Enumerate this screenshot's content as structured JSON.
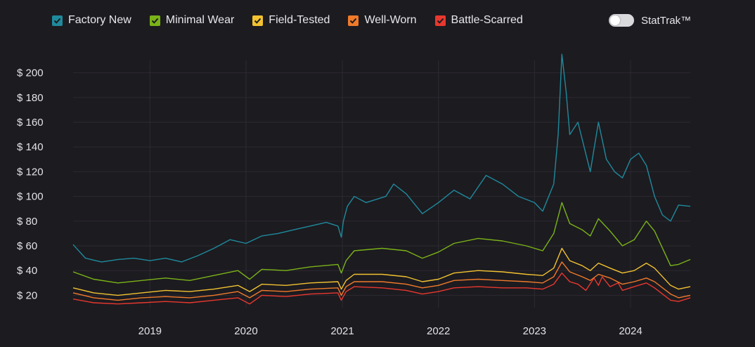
{
  "legend": {
    "items": [
      {
        "label": "Factory New",
        "color": "#1f8a9c"
      },
      {
        "label": "Minimal Wear",
        "color": "#7ab317"
      },
      {
        "label": "Field-Tested",
        "color": "#f2c230"
      },
      {
        "label": "Well-Worn",
        "color": "#f07a2a"
      },
      {
        "label": "Battle-Scarred",
        "color": "#e8382e"
      }
    ]
  },
  "toggle": {
    "label": "StatTrak™",
    "state": "off"
  },
  "chart_data": {
    "type": "line",
    "title": "",
    "xlabel": "",
    "ylabel": "",
    "x_range": [
      "2018-03-15",
      "2024-08-15"
    ],
    "ylim": [
      10,
      210
    ],
    "y_ticks": [
      20,
      40,
      60,
      80,
      100,
      120,
      140,
      160,
      180,
      200
    ],
    "y_tick_labels": [
      "$ 20",
      "$ 40",
      "$ 60",
      "$ 80",
      "$ 100",
      "$ 120",
      "$ 140",
      "$ 160",
      "$ 180",
      "$ 200"
    ],
    "x_ticks": [
      "2019-01-01",
      "2020-01-01",
      "2021-01-01",
      "2022-01-01",
      "2023-01-01",
      "2024-01-01"
    ],
    "x_tick_labels": [
      "2019",
      "2020",
      "2021",
      "2022",
      "2023",
      "2024"
    ],
    "grid": true,
    "legend_position": "top-left",
    "series": [
      {
        "name": "Factory New",
        "color": "#1f8a9c",
        "points": [
          [
            "2018-03-15",
            61
          ],
          [
            "2018-05-01",
            50
          ],
          [
            "2018-07-01",
            47
          ],
          [
            "2018-09-01",
            49
          ],
          [
            "2018-11-01",
            50
          ],
          [
            "2019-01-01",
            48
          ],
          [
            "2019-03-01",
            50
          ],
          [
            "2019-05-01",
            47
          ],
          [
            "2019-07-01",
            52
          ],
          [
            "2019-09-01",
            58
          ],
          [
            "2019-11-01",
            65
          ],
          [
            "2020-01-01",
            62
          ],
          [
            "2020-03-01",
            68
          ],
          [
            "2020-05-01",
            70
          ],
          [
            "2020-07-01",
            73
          ],
          [
            "2020-09-01",
            76
          ],
          [
            "2020-11-01",
            79
          ],
          [
            "2020-12-15",
            76
          ],
          [
            "2020-12-28",
            67
          ],
          [
            "2021-01-05",
            80
          ],
          [
            "2021-01-20",
            92
          ],
          [
            "2021-02-15",
            100
          ],
          [
            "2021-04-01",
            95
          ],
          [
            "2021-06-15",
            100
          ],
          [
            "2021-07-15",
            110
          ],
          [
            "2021-09-01",
            102
          ],
          [
            "2021-11-01",
            86
          ],
          [
            "2022-01-01",
            95
          ],
          [
            "2022-03-01",
            105
          ],
          [
            "2022-05-01",
            98
          ],
          [
            "2022-07-01",
            117
          ],
          [
            "2022-09-01",
            110
          ],
          [
            "2022-11-01",
            100
          ],
          [
            "2023-01-01",
            95
          ],
          [
            "2023-02-01",
            88
          ],
          [
            "2023-03-15",
            110
          ],
          [
            "2023-04-01",
            150
          ],
          [
            "2023-04-15",
            215
          ],
          [
            "2023-05-01",
            185
          ],
          [
            "2023-05-15",
            150
          ],
          [
            "2023-06-15",
            160
          ],
          [
            "2023-08-01",
            120
          ],
          [
            "2023-09-01",
            160
          ],
          [
            "2023-10-01",
            130
          ],
          [
            "2023-11-01",
            120
          ],
          [
            "2023-12-01",
            115
          ],
          [
            "2024-01-01",
            130
          ],
          [
            "2024-02-01",
            135
          ],
          [
            "2024-03-01",
            125
          ],
          [
            "2024-04-01",
            100
          ],
          [
            "2024-05-01",
            85
          ],
          [
            "2024-06-01",
            80
          ],
          [
            "2024-07-01",
            93
          ],
          [
            "2024-08-15",
            92
          ]
        ]
      },
      {
        "name": "Minimal Wear",
        "color": "#7ab317",
        "points": [
          [
            "2018-03-15",
            39
          ],
          [
            "2018-06-01",
            33
          ],
          [
            "2018-09-01",
            30
          ],
          [
            "2018-12-01",
            32
          ],
          [
            "2019-03-01",
            34
          ],
          [
            "2019-06-01",
            32
          ],
          [
            "2019-09-01",
            36
          ],
          [
            "2019-12-01",
            40
          ],
          [
            "2020-01-15",
            33
          ],
          [
            "2020-03-01",
            41
          ],
          [
            "2020-06-01",
            40
          ],
          [
            "2020-09-01",
            43
          ],
          [
            "2020-12-15",
            45
          ],
          [
            "2020-12-28",
            38
          ],
          [
            "2021-01-15",
            48
          ],
          [
            "2021-02-15",
            56
          ],
          [
            "2021-06-01",
            58
          ],
          [
            "2021-09-01",
            56
          ],
          [
            "2021-11-01",
            50
          ],
          [
            "2022-01-01",
            55
          ],
          [
            "2022-03-01",
            62
          ],
          [
            "2022-06-01",
            66
          ],
          [
            "2022-09-01",
            64
          ],
          [
            "2022-12-01",
            60
          ],
          [
            "2023-02-01",
            56
          ],
          [
            "2023-03-15",
            70
          ],
          [
            "2023-04-15",
            95
          ],
          [
            "2023-05-15",
            78
          ],
          [
            "2023-07-01",
            73
          ],
          [
            "2023-08-01",
            68
          ],
          [
            "2023-09-01",
            82
          ],
          [
            "2023-10-15",
            72
          ],
          [
            "2023-12-01",
            60
          ],
          [
            "2024-01-15",
            65
          ],
          [
            "2024-03-01",
            80
          ],
          [
            "2024-04-01",
            72
          ],
          [
            "2024-06-01",
            44
          ],
          [
            "2024-07-01",
            45
          ],
          [
            "2024-08-15",
            49
          ]
        ]
      },
      {
        "name": "Field-Tested",
        "color": "#f2c230",
        "points": [
          [
            "2018-03-15",
            26
          ],
          [
            "2018-06-01",
            22
          ],
          [
            "2018-09-01",
            20
          ],
          [
            "2018-12-01",
            22
          ],
          [
            "2019-03-01",
            24
          ],
          [
            "2019-06-01",
            23
          ],
          [
            "2019-09-01",
            25
          ],
          [
            "2019-12-01",
            28
          ],
          [
            "2020-01-15",
            23
          ],
          [
            "2020-03-01",
            29
          ],
          [
            "2020-06-01",
            28
          ],
          [
            "2020-09-01",
            30
          ],
          [
            "2020-12-15",
            31
          ],
          [
            "2020-12-28",
            25
          ],
          [
            "2021-01-15",
            32
          ],
          [
            "2021-02-15",
            37
          ],
          [
            "2021-06-01",
            37
          ],
          [
            "2021-09-01",
            35
          ],
          [
            "2021-11-01",
            31
          ],
          [
            "2022-01-01",
            33
          ],
          [
            "2022-03-01",
            38
          ],
          [
            "2022-06-01",
            40
          ],
          [
            "2022-09-01",
            39
          ],
          [
            "2022-12-01",
            37
          ],
          [
            "2023-02-01",
            36
          ],
          [
            "2023-03-15",
            42
          ],
          [
            "2023-04-15",
            58
          ],
          [
            "2023-05-15",
            48
          ],
          [
            "2023-07-01",
            44
          ],
          [
            "2023-08-01",
            40
          ],
          [
            "2023-09-01",
            46
          ],
          [
            "2023-10-15",
            42
          ],
          [
            "2023-12-01",
            38
          ],
          [
            "2024-01-15",
            40
          ],
          [
            "2024-03-01",
            46
          ],
          [
            "2024-04-01",
            42
          ],
          [
            "2024-06-01",
            28
          ],
          [
            "2024-07-01",
            25
          ],
          [
            "2024-08-15",
            27
          ]
        ]
      },
      {
        "name": "Well-Worn",
        "color": "#f07a2a",
        "points": [
          [
            "2018-03-15",
            22
          ],
          [
            "2018-06-01",
            18
          ],
          [
            "2018-09-01",
            16
          ],
          [
            "2018-12-01",
            18
          ],
          [
            "2019-03-01",
            19
          ],
          [
            "2019-06-01",
            18
          ],
          [
            "2019-09-01",
            20
          ],
          [
            "2019-12-01",
            23
          ],
          [
            "2020-01-15",
            18
          ],
          [
            "2020-03-01",
            24
          ],
          [
            "2020-06-01",
            23
          ],
          [
            "2020-09-01",
            25
          ],
          [
            "2020-12-15",
            26
          ],
          [
            "2020-12-28",
            20
          ],
          [
            "2021-01-15",
            27
          ],
          [
            "2021-02-15",
            31
          ],
          [
            "2021-06-01",
            31
          ],
          [
            "2021-09-01",
            29
          ],
          [
            "2021-11-01",
            26
          ],
          [
            "2022-01-01",
            28
          ],
          [
            "2022-03-01",
            32
          ],
          [
            "2022-06-01",
            33
          ],
          [
            "2022-09-01",
            32
          ],
          [
            "2022-12-01",
            31
          ],
          [
            "2023-02-01",
            30
          ],
          [
            "2023-03-15",
            35
          ],
          [
            "2023-04-15",
            47
          ],
          [
            "2023-05-15",
            39
          ],
          [
            "2023-07-01",
            35
          ],
          [
            "2023-08-01",
            32
          ],
          [
            "2023-09-01",
            37
          ],
          [
            "2023-10-15",
            34
          ],
          [
            "2023-12-01",
            29
          ],
          [
            "2024-01-15",
            31
          ],
          [
            "2024-03-01",
            34
          ],
          [
            "2024-04-01",
            31
          ],
          [
            "2024-06-01",
            21
          ],
          [
            "2024-07-01",
            18
          ],
          [
            "2024-08-15",
            20
          ]
        ]
      },
      {
        "name": "Battle-Scarred",
        "color": "#e8382e",
        "points": [
          [
            "2018-03-15",
            17
          ],
          [
            "2018-06-01",
            14
          ],
          [
            "2018-09-01",
            13
          ],
          [
            "2018-12-01",
            14
          ],
          [
            "2019-03-01",
            15
          ],
          [
            "2019-06-01",
            14
          ],
          [
            "2019-09-01",
            16
          ],
          [
            "2019-12-01",
            18
          ],
          [
            "2020-01-15",
            13
          ],
          [
            "2020-03-01",
            20
          ],
          [
            "2020-06-01",
            19
          ],
          [
            "2020-09-01",
            21
          ],
          [
            "2020-12-15",
            22
          ],
          [
            "2020-12-28",
            16
          ],
          [
            "2021-01-15",
            23
          ],
          [
            "2021-02-15",
            27
          ],
          [
            "2021-06-01",
            26
          ],
          [
            "2021-09-01",
            24
          ],
          [
            "2021-11-01",
            21
          ],
          [
            "2022-01-01",
            23
          ],
          [
            "2022-03-01",
            26
          ],
          [
            "2022-06-01",
            27
          ],
          [
            "2022-09-01",
            26
          ],
          [
            "2022-12-01",
            26
          ],
          [
            "2023-02-01",
            25
          ],
          [
            "2023-03-15",
            29
          ],
          [
            "2023-04-15",
            38
          ],
          [
            "2023-05-15",
            31
          ],
          [
            "2023-06-15",
            29
          ],
          [
            "2023-07-15",
            24
          ],
          [
            "2023-08-15",
            34
          ],
          [
            "2023-09-01",
            28
          ],
          [
            "2023-09-15",
            35
          ],
          [
            "2023-10-15",
            27
          ],
          [
            "2023-11-15",
            30
          ],
          [
            "2023-12-01",
            24
          ],
          [
            "2024-01-15",
            27
          ],
          [
            "2024-03-01",
            30
          ],
          [
            "2024-04-01",
            26
          ],
          [
            "2024-06-01",
            16
          ],
          [
            "2024-07-01",
            15
          ],
          [
            "2024-08-15",
            18
          ]
        ]
      }
    ]
  }
}
